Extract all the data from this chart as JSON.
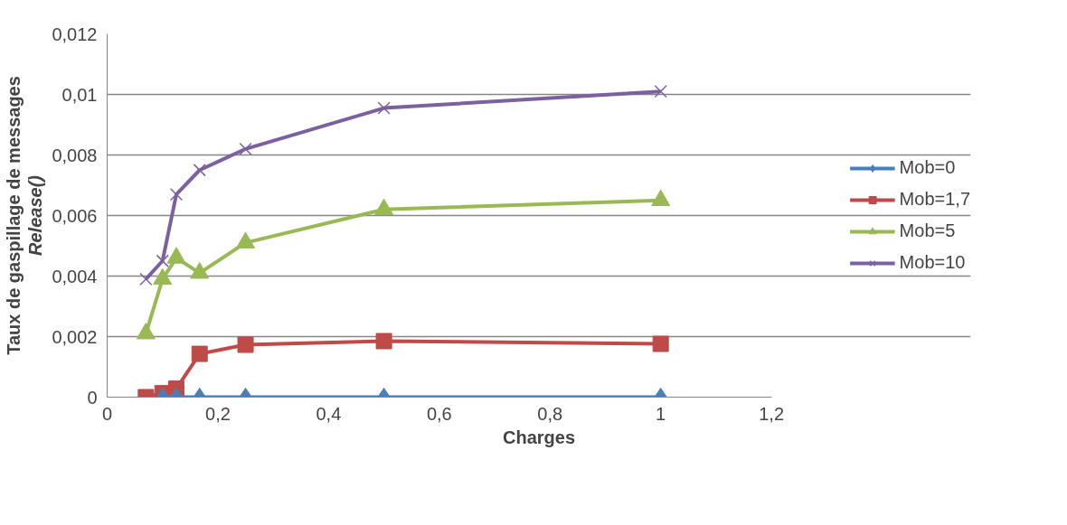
{
  "chart_data": {
    "type": "line",
    "xlabel": "Charges",
    "ylabel": "Taux de gaspillage de messages",
    "subtitle": "Release()",
    "x": [
      0.07,
      0.1,
      0.125,
      0.167,
      0.25,
      0.5,
      1
    ],
    "series": [
      {
        "name": "Mob=0",
        "color": "#4a7ebb",
        "marker": "diamond",
        "values": [
          null,
          0,
          0,
          0,
          0,
          0,
          0
        ]
      },
      {
        "name": "Mob=1,7",
        "color": "#be4b48",
        "marker": "square",
        "values": [
          0,
          0.00013,
          0.00028,
          0.00143,
          0.00173,
          0.00185,
          0.00176
        ]
      },
      {
        "name": "Mob=5",
        "color": "#98b954",
        "marker": "triangle",
        "values": [
          0.0021,
          0.0039,
          0.0046,
          0.0041,
          0.0051,
          0.0062,
          0.0065
        ]
      },
      {
        "name": "Mob=10",
        "color": "#7d60a0",
        "marker": "cross",
        "values": [
          0.0039,
          0.0045,
          0.0067,
          0.0075,
          0.0082,
          0.00955,
          0.0101
        ]
      }
    ],
    "xlim": [
      0,
      1.2
    ],
    "xticks": [
      {
        "value": 0,
        "label": "0"
      },
      {
        "value": 0.2,
        "label": "0,2"
      },
      {
        "value": 0.4,
        "label": "0,4"
      },
      {
        "value": 0.6,
        "label": "0,6"
      },
      {
        "value": 0.8,
        "label": "0,8"
      },
      {
        "value": 1,
        "label": "1"
      },
      {
        "value": 1.2,
        "label": "1,2"
      }
    ],
    "ylim": [
      0,
      0.012
    ],
    "yticks": [
      {
        "value": 0,
        "label": "0"
      },
      {
        "value": 0.002,
        "label": "0,002"
      },
      {
        "value": 0.004,
        "label": "0,004"
      },
      {
        "value": 0.006,
        "label": "0,006"
      },
      {
        "value": 0.008,
        "label": "0,008"
      },
      {
        "value": 0.01,
        "label": "0,01"
      },
      {
        "value": 0.012,
        "label": "0,012"
      }
    ],
    "grid": "y",
    "legend": "right",
    "line_style": "solid"
  }
}
